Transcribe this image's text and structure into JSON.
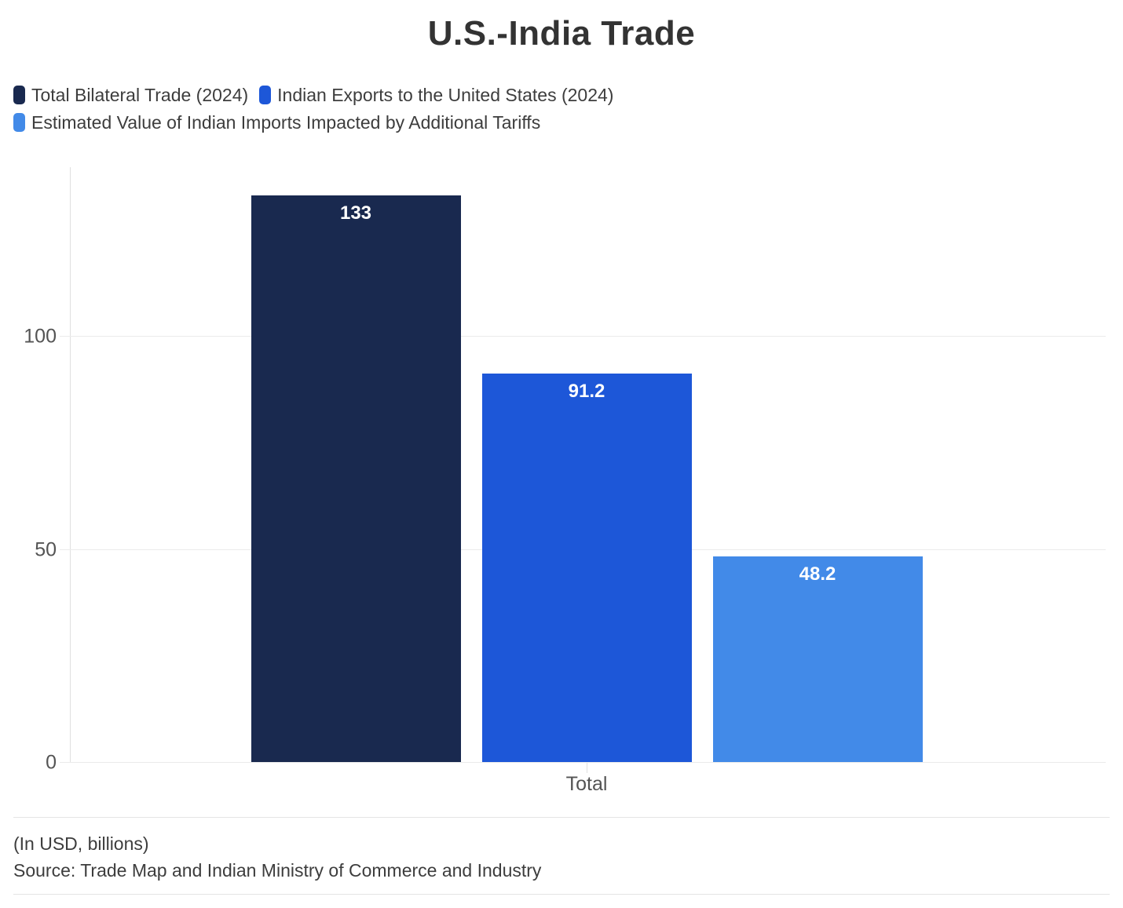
{
  "title": "U.S.-India Trade",
  "legend": {
    "items": [
      {
        "label": "Total Bilateral Trade (2024)",
        "color": "#19294f"
      },
      {
        "label": "Indian Exports to the United States (2024)",
        "color": "#1d57d8"
      },
      {
        "label": "Estimated Value of Indian Imports Impacted by Additional Tariffs",
        "color": "#428ae8"
      }
    ]
  },
  "chart_data": {
    "type": "bar",
    "title": "U.S.-India Trade",
    "categories": [
      "Total"
    ],
    "series": [
      {
        "name": "Total Bilateral Trade (2024)",
        "values": [
          133
        ],
        "label": "133",
        "color": "#19294f"
      },
      {
        "name": "Indian Exports to the United States (2024)",
        "values": [
          91.2
        ],
        "label": "91.2",
        "color": "#1d57d8"
      },
      {
        "name": "Estimated Value of Indian Imports Impacted by Additional Tariffs",
        "values": [
          48.2
        ],
        "label": "48.2",
        "color": "#428ae8"
      }
    ],
    "xlabel": "",
    "ylabel": "",
    "yticks": [
      0,
      50,
      100
    ],
    "ylim": [
      0,
      139.6
    ],
    "grid": true,
    "legend_position": "top-left"
  },
  "footer": {
    "note": "(In USD, billions)",
    "source": "Source: Trade Map and Indian Ministry of Commerce and Industry"
  }
}
